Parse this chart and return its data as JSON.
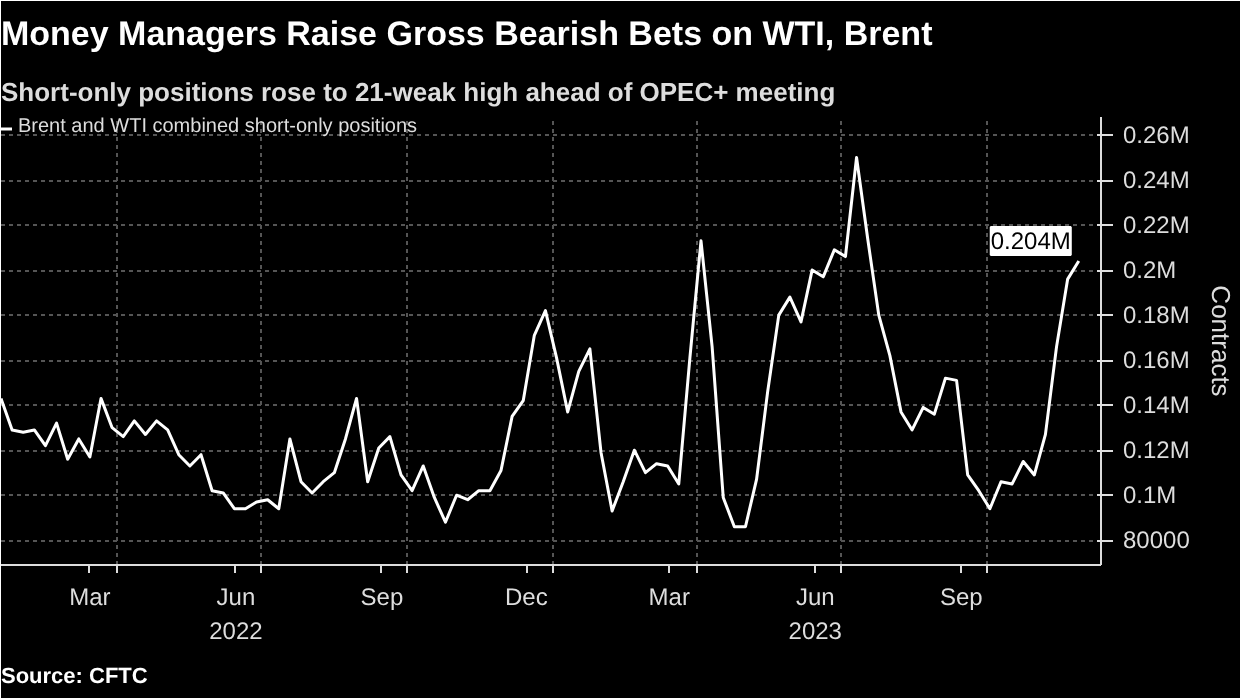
{
  "chart_data": {
    "type": "line",
    "title": "Money Managers Raise Gross Bearish Bets on WTI, Brent",
    "subtitle": "Short-only positions rose to 21-weak high ahead of OPEC+ meeting",
    "ylabel": "Contracts",
    "x": [
      "2022-01-18",
      "2022-01-25",
      "2022-02-01",
      "2022-02-08",
      "2022-02-15",
      "2022-02-22",
      "2022-03-01",
      "2022-03-08",
      "2022-03-15",
      "2022-03-22",
      "2022-03-29",
      "2022-04-05",
      "2022-04-12",
      "2022-04-19",
      "2022-04-26",
      "2022-05-03",
      "2022-05-10",
      "2022-05-17",
      "2022-05-24",
      "2022-05-31",
      "2022-06-07",
      "2022-06-14",
      "2022-06-21",
      "2022-06-28",
      "2022-07-05",
      "2022-07-12",
      "2022-07-19",
      "2022-07-26",
      "2022-08-02",
      "2022-08-09",
      "2022-08-16",
      "2022-08-23",
      "2022-08-30",
      "2022-09-06",
      "2022-09-13",
      "2022-09-20",
      "2022-09-27",
      "2022-10-04",
      "2022-10-11",
      "2022-10-18",
      "2022-10-25",
      "2022-11-01",
      "2022-11-08",
      "2022-11-15",
      "2022-11-22",
      "2022-11-29",
      "2022-12-06",
      "2022-12-13",
      "2022-12-20",
      "2022-12-27",
      "2023-01-03",
      "2023-01-10",
      "2023-01-17",
      "2023-01-24",
      "2023-01-31",
      "2023-02-07",
      "2023-02-14",
      "2023-02-21",
      "2023-02-28",
      "2023-03-07",
      "2023-03-14",
      "2023-03-21",
      "2023-03-28",
      "2023-04-04",
      "2023-04-11",
      "2023-04-18",
      "2023-04-25",
      "2023-05-02",
      "2023-05-09",
      "2023-05-16",
      "2023-05-23",
      "2023-05-30",
      "2023-06-06",
      "2023-06-13",
      "2023-06-20",
      "2023-06-27",
      "2023-07-04",
      "2023-07-11",
      "2023-07-18",
      "2023-07-25",
      "2023-08-01",
      "2023-08-08",
      "2023-08-15",
      "2023-08-22",
      "2023-08-29",
      "2023-09-05",
      "2023-09-12",
      "2023-09-19",
      "2023-09-26",
      "2023-10-03",
      "2023-10-10",
      "2023-10-17",
      "2023-10-24",
      "2023-10-31",
      "2023-11-07",
      "2023-11-14",
      "2023-11-21",
      "2023-11-28"
    ],
    "series": [
      {
        "name": "Brent and WTI combined short-only positions",
        "color": "#ffffff",
        "values": [
          143000,
          129000,
          128000,
          129000,
          122000,
          132000,
          116000,
          125000,
          117000,
          143000,
          130000,
          126000,
          133000,
          127000,
          133000,
          129000,
          118000,
          113000,
          118000,
          102000,
          101000,
          94000,
          94000,
          97000,
          98000,
          94000,
          125000,
          106000,
          101000,
          106000,
          110000,
          125000,
          143000,
          106000,
          121000,
          126000,
          109000,
          102000,
          113000,
          99000,
          88000,
          100000,
          98000,
          102000,
          102000,
          111000,
          135000,
          142000,
          171000,
          182000,
          161000,
          137000,
          155000,
          165000,
          119000,
          93000,
          106000,
          120000,
          110000,
          114000,
          113000,
          105000,
          161000,
          213000,
          166000,
          99000,
          86000,
          86000,
          107000,
          146000,
          180000,
          188000,
          177000,
          200000,
          197000,
          209000,
          206000,
          250000,
          214000,
          180000,
          162000,
          137000,
          129000,
          139000,
          136000,
          152000,
          151000,
          109000,
          102000,
          94000,
          106000,
          105000,
          115000,
          109000,
          127000,
          166000,
          196000,
          204000
        ]
      }
    ],
    "xlim": [
      "2022-01-18",
      "2023-12-12"
    ],
    "xticks": [
      {
        "value": "2022-03-15",
        "label": "Mar"
      },
      {
        "value": "2022-04-01",
        "label": null
      },
      {
        "value": "2022-06-15",
        "label": "Jun\n2022"
      },
      {
        "value": "2022-07-01",
        "label": null
      },
      {
        "value": "2022-09-15",
        "label": "Sep"
      },
      {
        "value": "2022-10-01",
        "label": null
      },
      {
        "value": "2022-12-15",
        "label": "Dec"
      },
      {
        "value": "2023-01-01",
        "label": null
      },
      {
        "value": "2023-03-15",
        "label": "Mar"
      },
      {
        "value": "2023-04-01",
        "label": null
      },
      {
        "value": "2023-06-15",
        "label": "Jun\n2023"
      },
      {
        "value": "2023-07-01",
        "label": null
      },
      {
        "value": "2023-09-15",
        "label": "Sep"
      },
      {
        "value": "2023-10-01",
        "label": null
      }
    ],
    "ylim": [
      69000,
      268000
    ],
    "yticks": [
      80000,
      {
        "value": 100000,
        "label": "0.1M"
      },
      {
        "value": 120000,
        "label": "0.12M"
      },
      {
        "value": 140000,
        "label": "0.14M"
      },
      {
        "value": 160000,
        "label": "0.16M"
      },
      {
        "value": 180000,
        "label": "0.18M"
      },
      {
        "value": 200000,
        "label": "0.2M"
      },
      {
        "value": 220000,
        "label": "0.22M"
      },
      {
        "value": 240000,
        "label": "0.24M"
      },
      {
        "value": 260000,
        "label": "0.26M"
      }
    ],
    "grid": true,
    "legend": "top left",
    "line_style": "solid",
    "annotations": [
      {
        "text": "0.204M",
        "x": "2023-11-28",
        "y": 204000
      },
      "Source: CFTC"
    ]
  }
}
